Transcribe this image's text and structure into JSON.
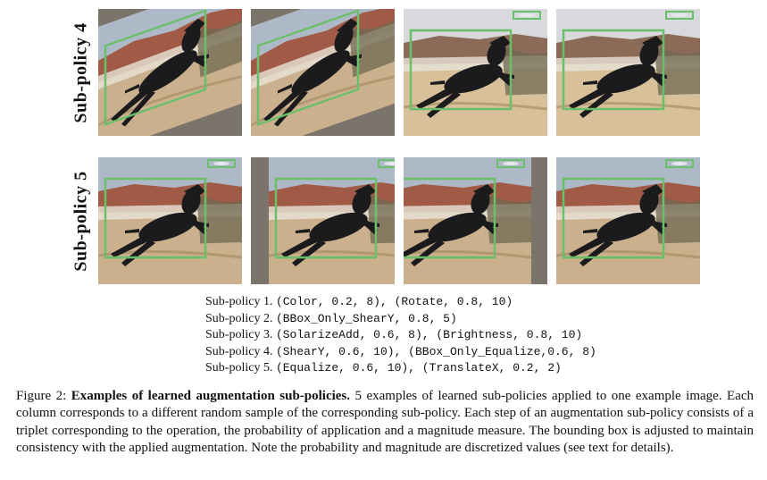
{
  "rows": [
    {
      "label": "Sub-policy 4"
    },
    {
      "label": "Sub-policy 5"
    }
  ],
  "policies": [
    {
      "label": "Sub-policy 1.",
      "code": "(Color, 0.2, 8), (Rotate, 0.8, 10)"
    },
    {
      "label": "Sub-policy 2.",
      "code": "(BBox_Only_ShearY, 0.8, 5)"
    },
    {
      "label": "Sub-policy 3.",
      "code": "(SolarizeAdd, 0.6, 8), (Brightness, 0.8, 10)"
    },
    {
      "label": "Sub-policy 4.",
      "code": "(ShearY, 0.6, 10), (BBox_Only_Equalize,0.6, 8)"
    },
    {
      "label": "Sub-policy 5.",
      "code": "(Equalize, 0.6, 10), (TranslateX, 0.2, 2)"
    }
  ],
  "caption": {
    "prefix": "Figure 2:",
    "title": "Examples of learned augmentation sub-policies.",
    "body": "5 examples of learned sub-policies applied to one example image. Each column corresponds to a different random sample of the corresponding sub-policy. Each step of an augmentation sub-policy consists of a triplet corresponding to the operation, the probability of application and a magnitude measure. The bounding box is adjusted to maintain consistency with the applied augmentation. Note the probability and magnitude are discretized values (see text for details)."
  },
  "colors": {
    "bbox": "#6abf69",
    "sky": "#aeb9c7",
    "cliff": "#a05a45",
    "ground": "#cbb08e",
    "dog": "#1b1b1d",
    "pad": "#7a746a"
  }
}
